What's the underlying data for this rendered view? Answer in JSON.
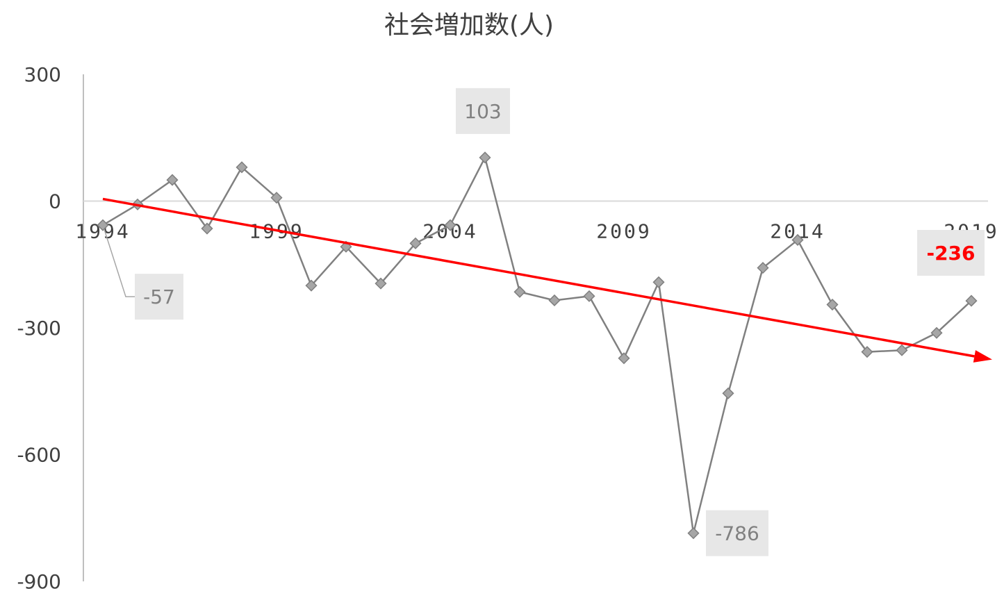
{
  "chart_data": {
    "type": "line",
    "title": "社会増加数(人)",
    "xlabel": "",
    "ylabel": "",
    "ylim": [
      -900,
      300
    ],
    "yticks": [
      300,
      0,
      -300,
      -600,
      -900
    ],
    "xtick_labels": [
      "1994",
      "1999",
      "2004",
      "2009",
      "2014",
      "2019"
    ],
    "grid": false,
    "legend": "none",
    "series": [
      {
        "x": [
          1994,
          1995,
          1996,
          1997,
          1998,
          1999,
          2000,
          2001,
          2002,
          2003,
          2004,
          2005,
          2006,
          2007,
          2008,
          2009,
          2010,
          2011,
          2012,
          2013,
          2014,
          2015,
          2016,
          2017,
          2018,
          2019
        ],
        "values": [
          -57,
          -8,
          50,
          -65,
          80,
          8,
          -200,
          -108,
          -195,
          -100,
          -57,
          103,
          -215,
          -235,
          -225,
          -372,
          -192,
          -786,
          -455,
          -158,
          -92,
          -245,
          -357,
          -353,
          -312,
          -236
        ],
        "color": "#808080",
        "marker": "diamond"
      }
    ],
    "data_labels": [
      {
        "x": 1994,
        "text": "-57",
        "style": "normal"
      },
      {
        "x": 2005,
        "text": "103",
        "style": "normal"
      },
      {
        "x": 2011,
        "text": "-786",
        "style": "normal"
      },
      {
        "x": 2019,
        "text": "-236",
        "style": "highlight"
      }
    ],
    "trend_arrow": {
      "from": [
        1994,
        5
      ],
      "to": [
        2019.6,
        -375
      ],
      "color": "#ff0000"
    },
    "colors": {
      "series": "#808080",
      "marker_fill": "#a6a6a6",
      "label_box": "#e7e7e7",
      "highlight": "#ff0000",
      "axis": "#bfbfbf"
    }
  }
}
